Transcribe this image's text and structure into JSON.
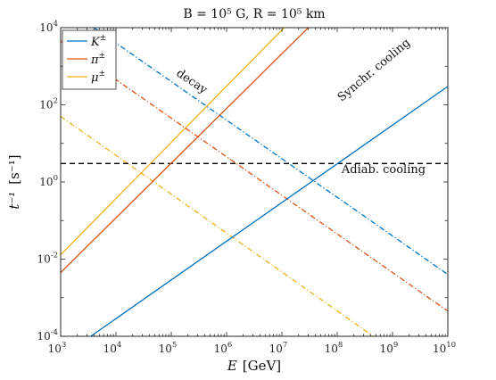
{
  "chart_data": {
    "type": "line",
    "title": {
      "text": "B = 10⁵ G, R = 10⁵ km"
    },
    "xlabel": {
      "main": "E",
      "unit": "[GeV]"
    },
    "ylabel": {
      "main": "t⁻¹",
      "unit": "[s⁻¹]"
    },
    "x_scale": "log",
    "y_scale": "log",
    "xlim": [
      1000,
      10000000000
    ],
    "ylim": [
      0.0001,
      10000
    ],
    "x_ticks": [
      {
        "base": "10",
        "exp": "3",
        "value": 1000
      },
      {
        "base": "10",
        "exp": "4",
        "value": 10000
      },
      {
        "base": "10",
        "exp": "5",
        "value": 100000
      },
      {
        "base": "10",
        "exp": "6",
        "value": 1000000
      },
      {
        "base": "10",
        "exp": "7",
        "value": 10000000
      },
      {
        "base": "10",
        "exp": "8",
        "value": 100000000
      },
      {
        "base": "10",
        "exp": "9",
        "value": 1000000000
      },
      {
        "base": "10",
        "exp": "10",
        "value": 10000000000
      }
    ],
    "y_ticks": [
      {
        "base": "10",
        "exp": "4",
        "value": 10000
      },
      {
        "base": "10",
        "exp": "2",
        "value": 100
      },
      {
        "base": "10",
        "exp": "0",
        "value": 1
      },
      {
        "base": "10",
        "exp": "-2",
        "value": 0.01
      },
      {
        "base": "10",
        "exp": "-4",
        "value": 0.0001
      }
    ],
    "grid": false,
    "legend_position": "top-left",
    "colors": {
      "K": "#0072BD",
      "pi": "#D95319",
      "mu": "#EDB120",
      "adiabatic": "#000000"
    },
    "series": [
      {
        "name": "K±",
        "label_main": "K",
        "label_sup": "±",
        "color": "#0072BD",
        "style": "solid",
        "process": "synchrotron",
        "x": [
          3500,
          10000000000
        ],
        "y": [
          0.0001,
          300
        ]
      },
      {
        "name": "π±",
        "label_main": "π",
        "label_sup": "±",
        "color": "#D95319",
        "style": "solid",
        "process": "synchrotron",
        "x": [
          1000,
          30000000
        ],
        "y": [
          0.0045,
          10000
        ]
      },
      {
        "name": "μ±",
        "label_main": "μ",
        "label_sup": "±",
        "color": "#EDB120",
        "style": "solid",
        "process": "synchrotron",
        "x": [
          1000,
          11000000
        ],
        "y": [
          0.013,
          10000
        ]
      },
      {
        "name": "K± decay",
        "color": "#0072BD",
        "style": "dashdot",
        "process": "decay",
        "x": [
          4000,
          10000000000
        ],
        "y": [
          10000,
          0.004
        ]
      },
      {
        "name": "π± decay",
        "color": "#D95319",
        "style": "dashdot",
        "process": "decay",
        "x": [
          1000,
          10000000000
        ],
        "y": [
          4500,
          0.00045
        ]
      },
      {
        "name": "μ± decay",
        "color": "#EDB120",
        "style": "dashdot",
        "process": "decay",
        "x": [
          1000,
          450000000
        ],
        "y": [
          50,
          0.0001
        ]
      },
      {
        "name": "Adiab. cooling",
        "color": "#000000",
        "style": "dashed",
        "process": "adiabatic",
        "x": [
          1000,
          10000000000
        ],
        "y": [
          3,
          3
        ]
      }
    ],
    "annotations": [
      {
        "text": "decay",
        "x": 120000,
        "y": 600,
        "rotation": 34
      },
      {
        "text": "Synchr. cooling",
        "x": 120000000,
        "y": 120,
        "rotation": -40
      },
      {
        "text": "Adiab. cooling",
        "x": 120000000,
        "y": 1.7,
        "rotation": 0
      }
    ]
  }
}
